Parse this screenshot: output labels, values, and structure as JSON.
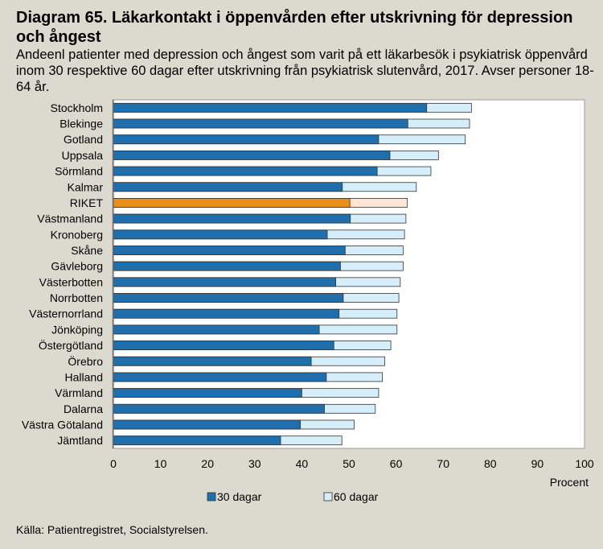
{
  "title": "Diagram 65. Läkarkontakt i öppenvården efter utskrivning för depression och ångest",
  "subtitle": "Andeenl patienter med depression och ångest som varit på ett läkarbesök i psykiatrisk öppenvård inom 30 respektive 60 dagar efter utskrivning från psykiatrisk slutenvård, 2017. Avser personer 18-64 år.",
  "source": "Källa: Patientregistret, Socialstyrelsen.",
  "colors": {
    "series30": "#1f6eae",
    "series60": "#d6eefa",
    "riket30": "#e8901a",
    "riket60": "#fce5d2",
    "background": "#dcd9cf",
    "plot": "#ffffff"
  },
  "chart_data": {
    "type": "bar",
    "orientation": "horizontal",
    "stacked": "overlay",
    "categories": [
      "Stockholm",
      "Blekinge",
      "Gotland",
      "Uppsala",
      "Sörmland",
      "Kalmar",
      "RIKET",
      "Västmanland",
      "Kronoberg",
      "Skåne",
      "Gävleborg",
      "Västerbotten",
      "Norrbotten",
      "Västernorrland",
      "Jönköping",
      "Östergötland",
      "Örebro",
      "Halland",
      "Värmland",
      "Dalarna",
      "Västra Götaland",
      "Jämtland"
    ],
    "series": [
      {
        "name": "30 dagar",
        "values": [
          66.5,
          62.5,
          56.3,
          58.7,
          56.0,
          48.6,
          50.2,
          50.3,
          45.4,
          49.2,
          48.2,
          47.2,
          48.8,
          47.9,
          43.7,
          46.8,
          42.0,
          45.2,
          40.0,
          44.8,
          39.7,
          35.5
        ]
      },
      {
        "name": "60 dagar",
        "values": [
          76.0,
          75.6,
          74.7,
          69.0,
          67.4,
          64.3,
          62.4,
          62.1,
          61.8,
          61.5,
          61.5,
          60.9,
          60.6,
          60.2,
          60.2,
          58.9,
          57.6,
          57.1,
          56.3,
          55.6,
          51.1,
          48.5
        ]
      }
    ],
    "highlight_category": "RIKET",
    "xlim": [
      0,
      100
    ],
    "xticks": [
      "0",
      "10",
      "20",
      "30",
      "40",
      "50",
      "60",
      "70",
      "80",
      "90",
      "100"
    ],
    "xlabel": "Procent",
    "legend_position": "bottom"
  }
}
